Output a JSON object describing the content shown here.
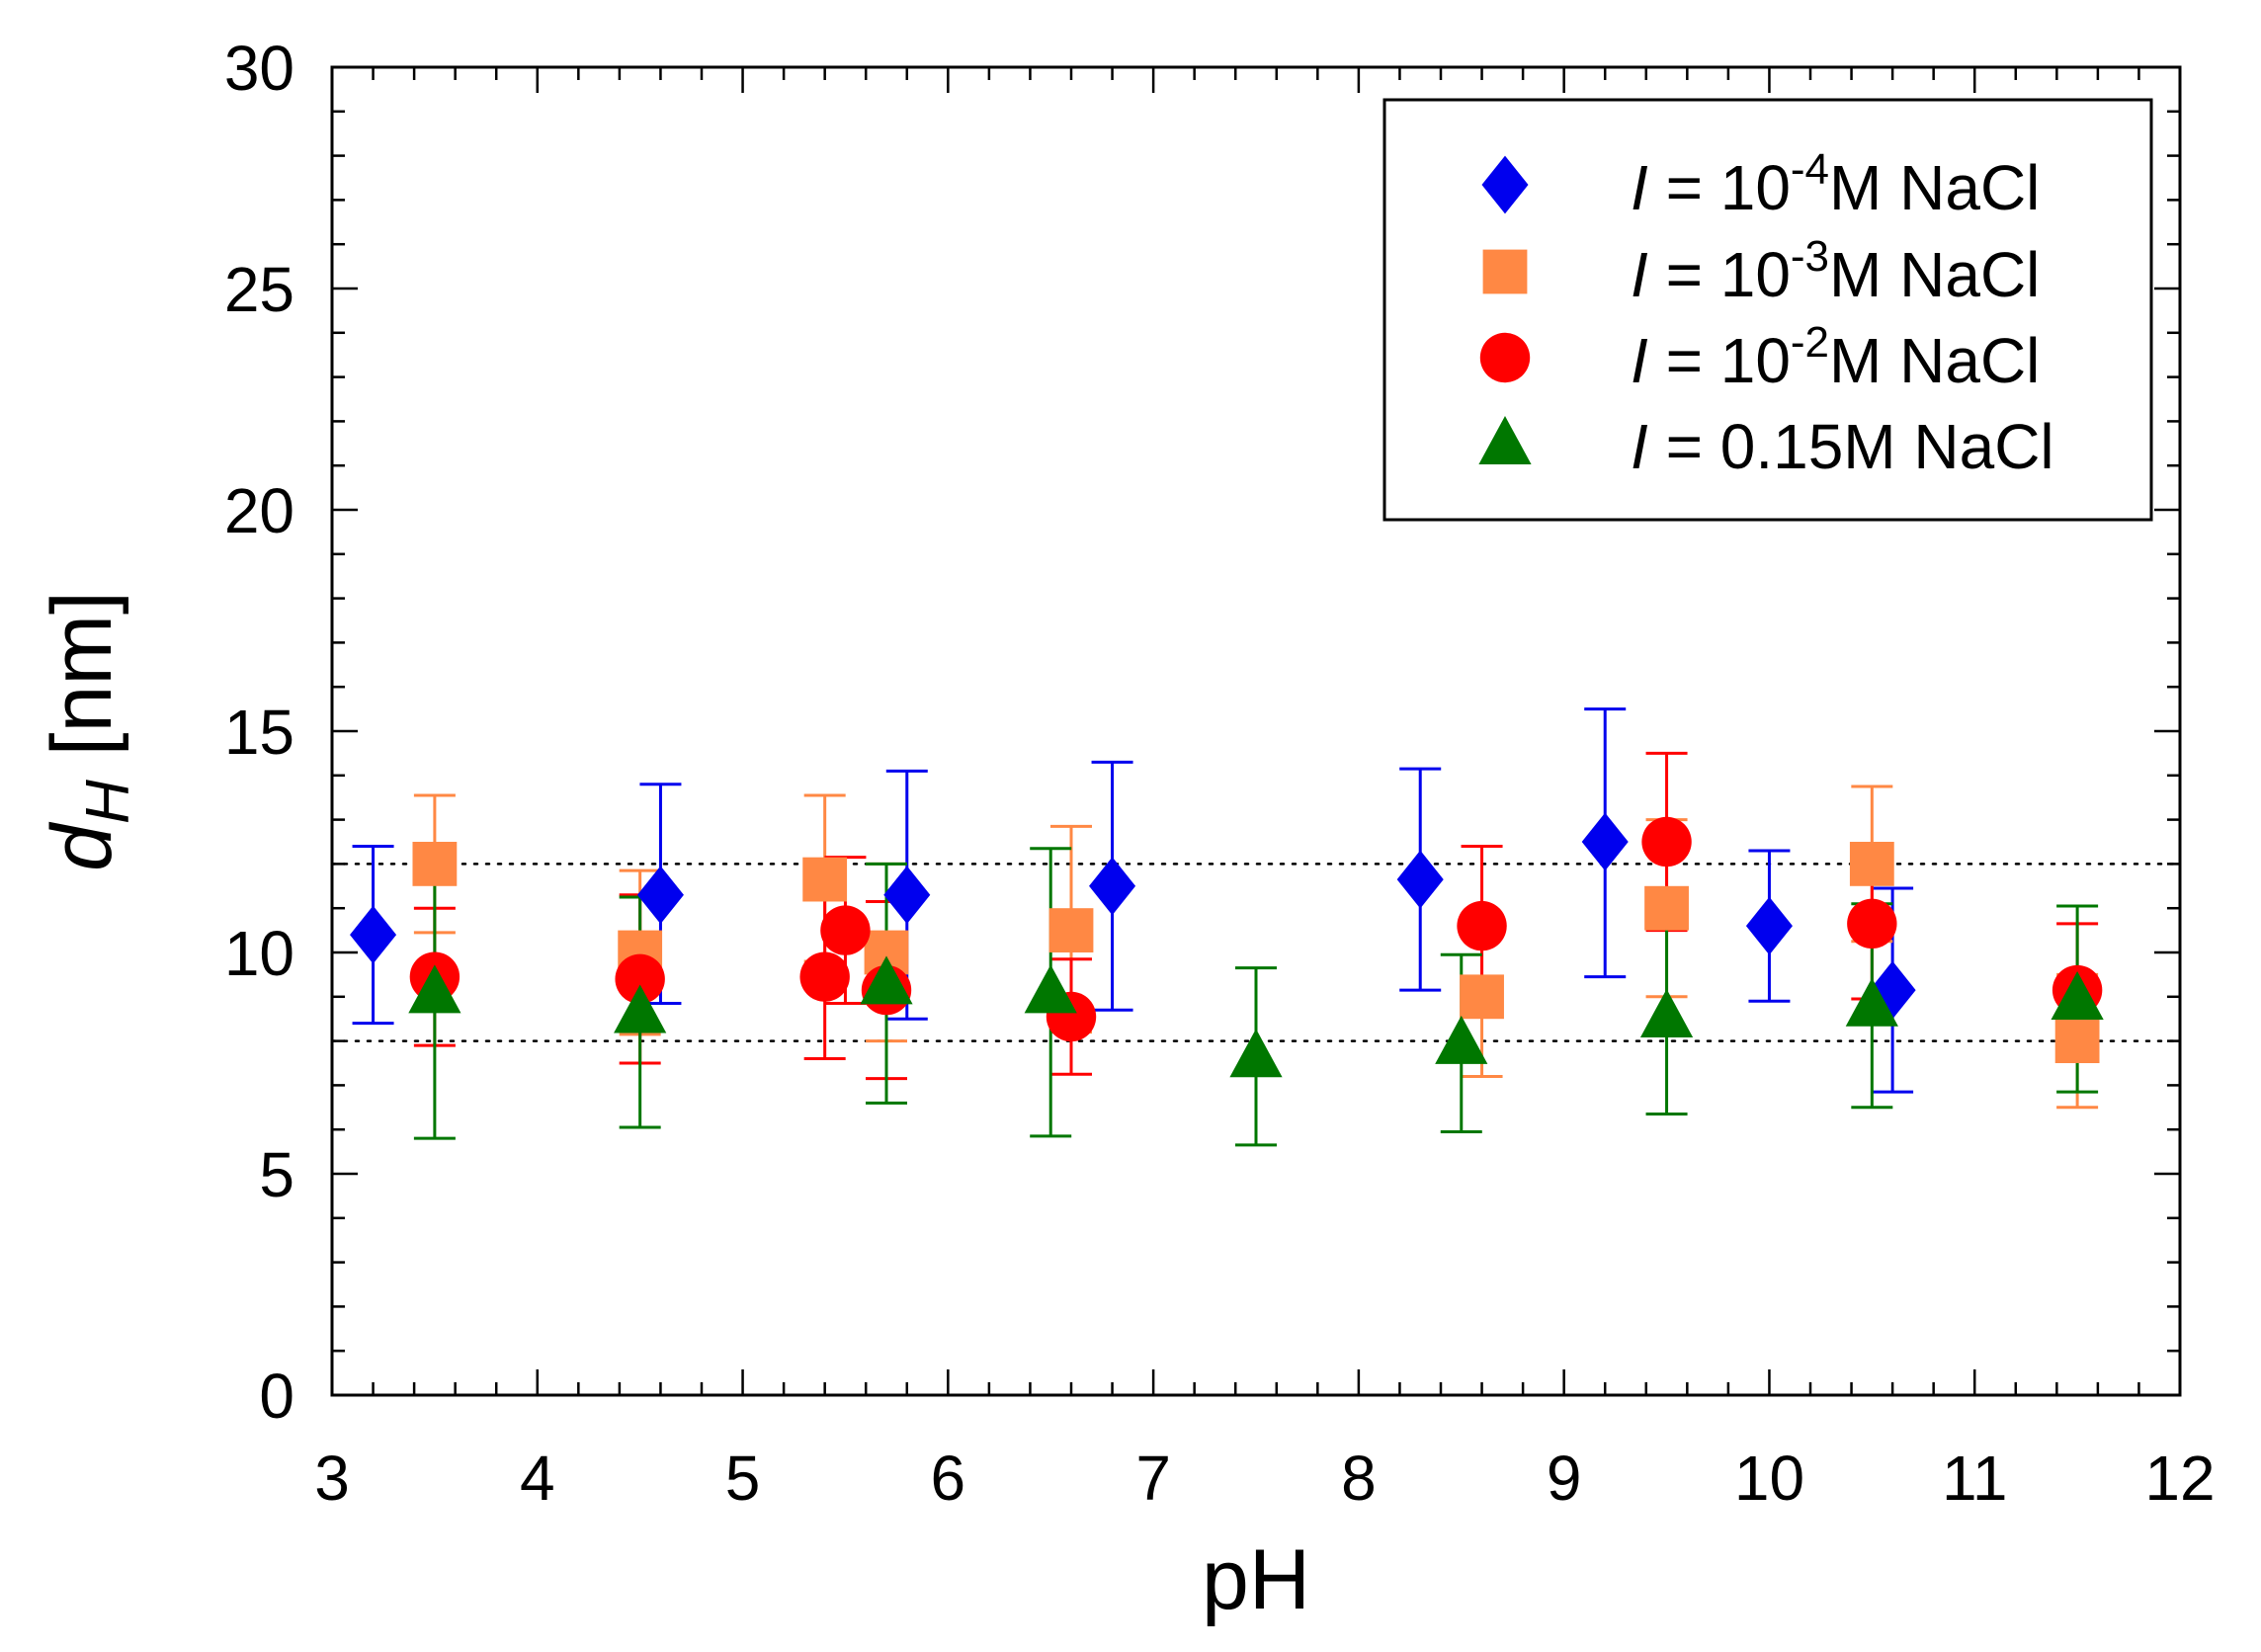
{
  "chart_data": {
    "type": "scatter",
    "xlabel": "pH",
    "ylabel": {
      "main": "d",
      "sub": "H",
      "unit": " [nm]"
    },
    "xlim": [
      3,
      12
    ],
    "ylim": [
      0,
      30
    ],
    "xticks": [
      3,
      4,
      5,
      6,
      7,
      8,
      9,
      10,
      11,
      12
    ],
    "yticks": [
      0,
      5,
      10,
      15,
      20,
      25,
      30
    ],
    "x_minor_step": 0.2,
    "y_minor_step": 1,
    "reference_lines": [
      12,
      8
    ],
    "legend_position": "top-right",
    "series": [
      {
        "name": "I = 10^-4 M NaCl",
        "legend": {
          "italic": "I",
          "eq": " = 10",
          "sup": "-4",
          "rest": "M NaCl"
        },
        "marker": "diamond",
        "color": "#0000ee",
        "points": [
          {
            "x": 3.2,
            "y": 10.4,
            "lo": 8.4,
            "hi": 12.4
          },
          {
            "x": 4.6,
            "y": 11.3,
            "lo": 8.85,
            "hi": 13.8
          },
          {
            "x": 5.8,
            "y": 11.3,
            "lo": 8.5,
            "hi": 14.1
          },
          {
            "x": 6.8,
            "y": 11.5,
            "lo": 8.7,
            "hi": 14.3
          },
          {
            "x": 8.3,
            "y": 11.65,
            "lo": 9.15,
            "hi": 14.15
          },
          {
            "x": 9.2,
            "y": 12.5,
            "lo": 9.45,
            "hi": 15.5
          },
          {
            "x": 10.0,
            "y": 10.6,
            "lo": 8.9,
            "hi": 12.3
          },
          {
            "x": 10.6,
            "y": 9.15,
            "lo": 6.85,
            "hi": 11.45
          }
        ]
      },
      {
        "name": "I = 10^-3 M NaCl",
        "legend": {
          "italic": "I",
          "eq": " = 10",
          "sup": "-3",
          "rest": "M NaCl"
        },
        "marker": "square",
        "color": "#ff8844",
        "points": [
          {
            "x": 3.5,
            "y": 12.0,
            "lo": 10.45,
            "hi": 13.55
          },
          {
            "x": 4.5,
            "y": 10.0,
            "lo": 8.15,
            "hi": 11.85
          },
          {
            "x": 5.4,
            "y": 11.65,
            "lo": 9.8,
            "hi": 13.55
          },
          {
            "x": 5.7,
            "y": 10.0,
            "lo": 8.0,
            "hi": 12.0
          },
          {
            "x": 6.6,
            "y": 10.5,
            "lo": 8.2,
            "hi": 12.85
          },
          {
            "x": 8.6,
            "y": 9.0,
            "lo": 7.2,
            "hi": 10.8
          },
          {
            "x": 9.5,
            "y": 11.0,
            "lo": 9.0,
            "hi": 13.0
          },
          {
            "x": 10.5,
            "y": 12.0,
            "lo": 10.25,
            "hi": 13.75
          },
          {
            "x": 11.5,
            "y": 8.0,
            "lo": 6.5,
            "hi": 9.5
          }
        ]
      },
      {
        "name": "I = 10^-2 M NaCl",
        "legend": {
          "italic": "I",
          "eq": " = 10",
          "sup": "-2",
          "rest": "M NaCl"
        },
        "marker": "circle",
        "color": "#ff0000",
        "points": [
          {
            "x": 3.5,
            "y": 9.45,
            "lo": 7.9,
            "hi": 11.0
          },
          {
            "x": 4.5,
            "y": 9.4,
            "lo": 7.5,
            "hi": 11.3
          },
          {
            "x": 5.4,
            "y": 9.45,
            "lo": 7.6,
            "hi": 11.3
          },
          {
            "x": 5.5,
            "y": 10.5,
            "lo": 8.85,
            "hi": 12.15
          },
          {
            "x": 5.7,
            "y": 9.15,
            "lo": 7.15,
            "hi": 11.15
          },
          {
            "x": 6.6,
            "y": 8.55,
            "lo": 7.25,
            "hi": 9.85
          },
          {
            "x": 8.6,
            "y": 10.6,
            "lo": 8.8,
            "hi": 12.4
          },
          {
            "x": 9.5,
            "y": 12.5,
            "lo": 10.5,
            "hi": 14.5
          },
          {
            "x": 10.5,
            "y": 10.65,
            "lo": 8.95,
            "hi": 12.35
          },
          {
            "x": 11.5,
            "y": 9.15,
            "lo": 7.65,
            "hi": 10.65
          }
        ]
      },
      {
        "name": "I = 0.15M NaCl",
        "legend": {
          "italic": "I",
          "eq": " = 0.15M NaCl",
          "sup": "",
          "rest": ""
        },
        "marker": "triangle",
        "color": "#007700",
        "points": [
          {
            "x": 3.5,
            "y": 9.1,
            "lo": 5.8,
            "hi": 12.4
          },
          {
            "x": 4.5,
            "y": 8.65,
            "lo": 6.05,
            "hi": 11.25
          },
          {
            "x": 5.7,
            "y": 9.3,
            "lo": 6.6,
            "hi": 12.0
          },
          {
            "x": 6.5,
            "y": 9.1,
            "lo": 5.85,
            "hi": 12.35
          },
          {
            "x": 7.5,
            "y": 7.65,
            "lo": 5.65,
            "hi": 9.65
          },
          {
            "x": 8.5,
            "y": 7.95,
            "lo": 5.95,
            "hi": 9.95
          },
          {
            "x": 9.5,
            "y": 8.55,
            "lo": 6.35,
            "hi": 10.75
          },
          {
            "x": 10.5,
            "y": 8.8,
            "lo": 6.5,
            "hi": 11.1
          },
          {
            "x": 11.5,
            "y": 8.95,
            "lo": 6.85,
            "hi": 11.05
          }
        ]
      }
    ]
  }
}
